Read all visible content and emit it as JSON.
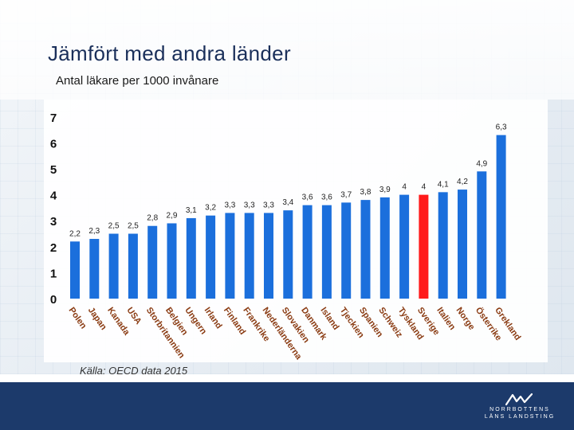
{
  "slide": {
    "title": "Jämfört med andra länder",
    "subtitle": "Antal läkare per 1000 invånare",
    "source": "Källa: OECD data 2015"
  },
  "logo": {
    "line1": "NORRBOTTENS",
    "line2": "LÄNS LANDSTING"
  },
  "colors": {
    "bar": "#1b6fdc",
    "highlight_bar": "#ff1a1a",
    "footer": "#1c3a6b",
    "title": "#1a2f5a"
  },
  "chart_data": {
    "type": "bar",
    "title": "",
    "xlabel": "",
    "ylabel": "",
    "ylim": [
      0,
      7
    ],
    "yticks": [
      "0",
      "1",
      "2",
      "3",
      "4",
      "5",
      "6",
      "7"
    ],
    "grid": false,
    "legend": "none",
    "highlight_category": "Sverige",
    "categories": [
      "Polen",
      "Japan",
      "Kanada",
      "USA",
      "Storbritannien",
      "Belgien",
      "Ungern",
      "Irland",
      "Finland",
      "Frankrike",
      "Nederländerna",
      "Slovakien",
      "Danmark",
      "Island",
      "Tjeckien",
      "Spanien",
      "Schweiz",
      "Tyskland",
      "Sverige",
      "Italien",
      "Norge",
      "Österrike",
      "Grekland"
    ],
    "values": [
      2.2,
      2.3,
      2.5,
      2.5,
      2.8,
      2.9,
      3.1,
      3.2,
      3.3,
      3.3,
      3.3,
      3.4,
      3.6,
      3.6,
      3.7,
      3.8,
      3.9,
      4,
      4,
      4.1,
      4.2,
      4.9,
      6.3
    ],
    "value_labels": [
      "2,2",
      "2,3",
      "2,5",
      "2,5",
      "2,8",
      "2,9",
      "3,1",
      "3,2",
      "3,3",
      "3,3",
      "3,3",
      "3,4",
      "3,6",
      "3,6",
      "3,7",
      "3,8",
      "3,9",
      "4",
      "4",
      "4,1",
      "4,2",
      "4,9",
      "6,3"
    ]
  }
}
